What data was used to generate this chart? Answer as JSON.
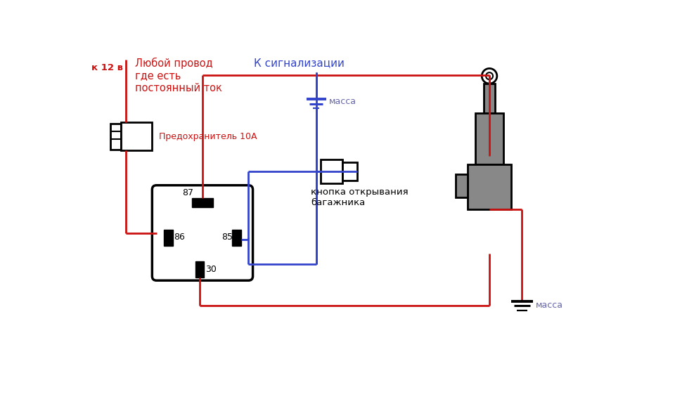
{
  "bg_color": "#ffffff",
  "red": "#cc1111",
  "blue": "#3344cc",
  "black": "#000000",
  "gray": "#888888",
  "label_red": "#cc1111",
  "label_blue": "#3344cc",
  "label_gray": "#6666aa",
  "text_k12v": "к 12 в",
  "text_any_wire": "Любой провод\nгде есть\nпостоянный ток",
  "text_fuse": "Предохранитель 10А",
  "text_alarm": "К сигнализации",
  "text_massa1": "масса",
  "text_button": "кнопка открывания\nбагажника",
  "text_massa2": "масса",
  "text_87": "87",
  "text_86": "86",
  "text_85": "85",
  "text_30": "30"
}
